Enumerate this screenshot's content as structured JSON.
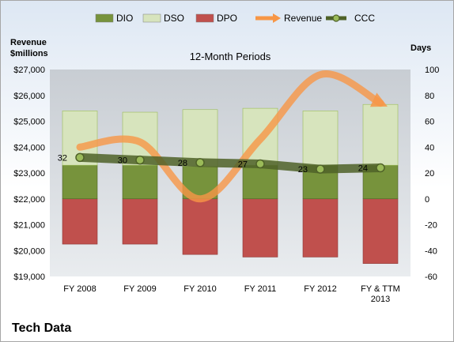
{
  "company": "Tech Data",
  "chart_data": {
    "type": "bar",
    "title": "12-Month Periods",
    "y_left_label": [
      "Revenue",
      "$millions"
    ],
    "y_right_label": "Days",
    "categories": [
      "FY 2008",
      "FY 2009",
      "FY 2010",
      "FY 2011",
      "FY 2012",
      [
        "FY & TTM",
        "2013"
      ]
    ],
    "y_left_ticks": [
      "$19,000",
      "$20,000",
      "$21,000",
      "$22,000",
      "$23,000",
      "$24,000",
      "$25,000",
      "$26,000",
      "$27,000"
    ],
    "y_left_range": [
      19000,
      27000
    ],
    "y_right_ticks": [
      "-60",
      "-40",
      "-20",
      "0",
      "20",
      "40",
      "60",
      "80",
      "100"
    ],
    "y_right_range": [
      -60,
      100
    ],
    "legend": [
      {
        "name": "DIO",
        "color": "#77933c",
        "kind": "box"
      },
      {
        "name": "DSO",
        "color": "#d7e4bd",
        "kind": "box"
      },
      {
        "name": "DPO",
        "color": "#c0504d",
        "kind": "box"
      },
      {
        "name": "Revenue",
        "color": "#f79646",
        "kind": "arrow"
      },
      {
        "name": "CCC",
        "color": "#4f6228",
        "kind": "line-dot"
      }
    ],
    "series": [
      {
        "name": "DIO",
        "axis": "right",
        "values": [
          26,
          26,
          25,
          26,
          26,
          26
        ],
        "color": "#77933c"
      },
      {
        "name": "DSO",
        "axis": "right",
        "values": [
          42,
          41,
          44,
          44,
          42,
          47
        ],
        "color": "#d7e4bd"
      },
      {
        "name": "DPO",
        "axis": "right",
        "values": [
          -35,
          -35,
          -43,
          -45,
          -45,
          -50
        ],
        "color": "#c0504d"
      },
      {
        "name": "Revenue",
        "axis": "left",
        "values": [
          24000,
          24200,
          22000,
          24300,
          26800,
          25700
        ],
        "color": "#f79646"
      },
      {
        "name": "CCC",
        "axis": "right",
        "values": [
          32,
          30,
          28,
          27,
          23,
          24
        ],
        "color": "#4f6228"
      }
    ],
    "ccc_labels": [
      "32",
      "30",
      "28",
      "27",
      "23",
      "24"
    ]
  }
}
